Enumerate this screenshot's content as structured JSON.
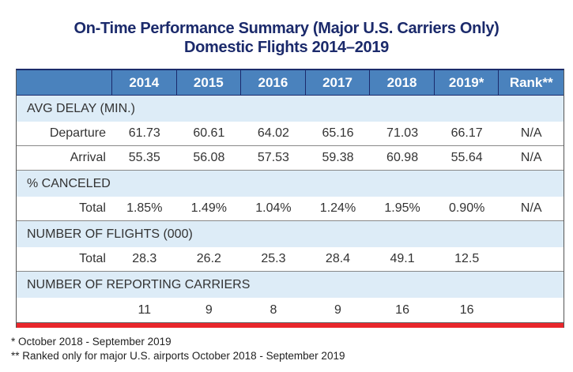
{
  "title": {
    "line1": "On-Time Performance Summary (Major U.S. Carriers Only)",
    "line2": "Domestic Flights 2014–2019"
  },
  "table": {
    "columns": [
      "",
      "2014",
      "2015",
      "2016",
      "2017",
      "2018",
      "2019*",
      "Rank**"
    ],
    "sections": [
      {
        "label": "AVG DELAY (MIN.)",
        "rows": [
          {
            "label": "Departure",
            "values": [
              "61.73",
              "60.61",
              "64.02",
              "65.16",
              "71.03",
              "66.17",
              "N/A"
            ]
          },
          {
            "label": "Arrival",
            "values": [
              "55.35",
              "56.08",
              "57.53",
              "59.38",
              "60.98",
              "55.64",
              "N/A"
            ]
          }
        ]
      },
      {
        "label": "% CANCELED",
        "rows": [
          {
            "label": "Total",
            "values": [
              "1.85%",
              "1.49%",
              "1.04%",
              "1.24%",
              "1.95%",
              "0.90%",
              "N/A"
            ]
          }
        ]
      },
      {
        "label": "NUMBER OF FLIGHTS (000)",
        "rows": [
          {
            "label": "Total",
            "values": [
              "28.3",
              "26.2",
              "25.3",
              "28.4",
              "49.1",
              "12.5",
              ""
            ]
          }
        ]
      },
      {
        "label": "NUMBER OF REPORTING CARRIERS",
        "rows": [
          {
            "label": "",
            "values": [
              "11",
              "9",
              "8",
              "9",
              "16",
              "16",
              ""
            ]
          }
        ]
      }
    ]
  },
  "footnotes": [
    "* October 2018 - September 2019",
    "** Ranked only for major U.S. airports October 2018 - September 2019"
  ],
  "colors": {
    "title": "#1b2a6b",
    "header_bg": "#4a82bd",
    "section_bg": "#ddecf7",
    "accent_bar": "#e8262b"
  }
}
